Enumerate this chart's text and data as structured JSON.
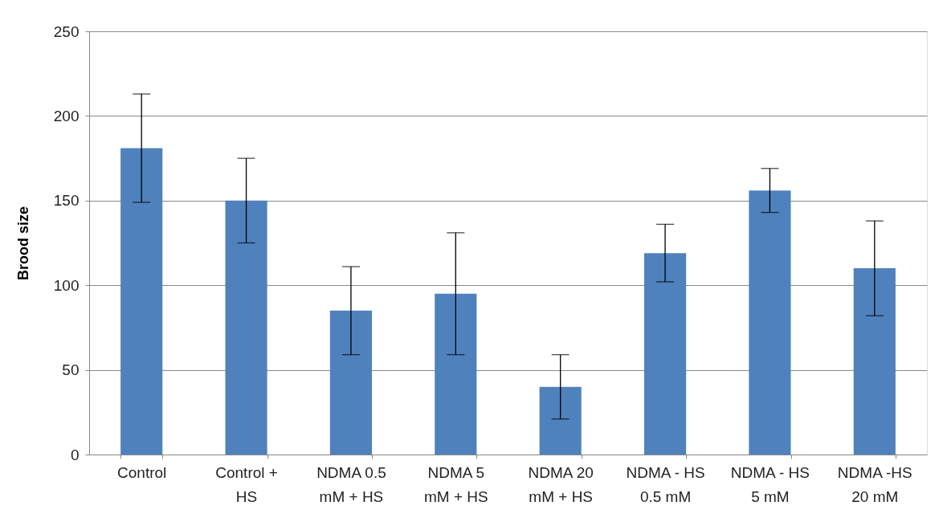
{
  "chart_data": {
    "type": "bar",
    "ylabel": "Brood size",
    "categories": [
      "Control",
      "Control + HS",
      "NDMA 0.5 mM + HS",
      "NDMA 5 mM + HS",
      "NDMA 20 mM + HS",
      "NDMA - HS 0.5 mM",
      "NDMA - HS 5 mM",
      "NDMA -HS 20 mM"
    ],
    "values": [
      181,
      150,
      85,
      95,
      40,
      119,
      156,
      110
    ],
    "errors": [
      32,
      25,
      26,
      36,
      19,
      17,
      13,
      28
    ],
    "color": "#4f81bd",
    "ylim": [
      0,
      250
    ],
    "yticks": [
      0,
      50,
      100,
      150,
      200,
      250
    ],
    "grid": "y"
  }
}
